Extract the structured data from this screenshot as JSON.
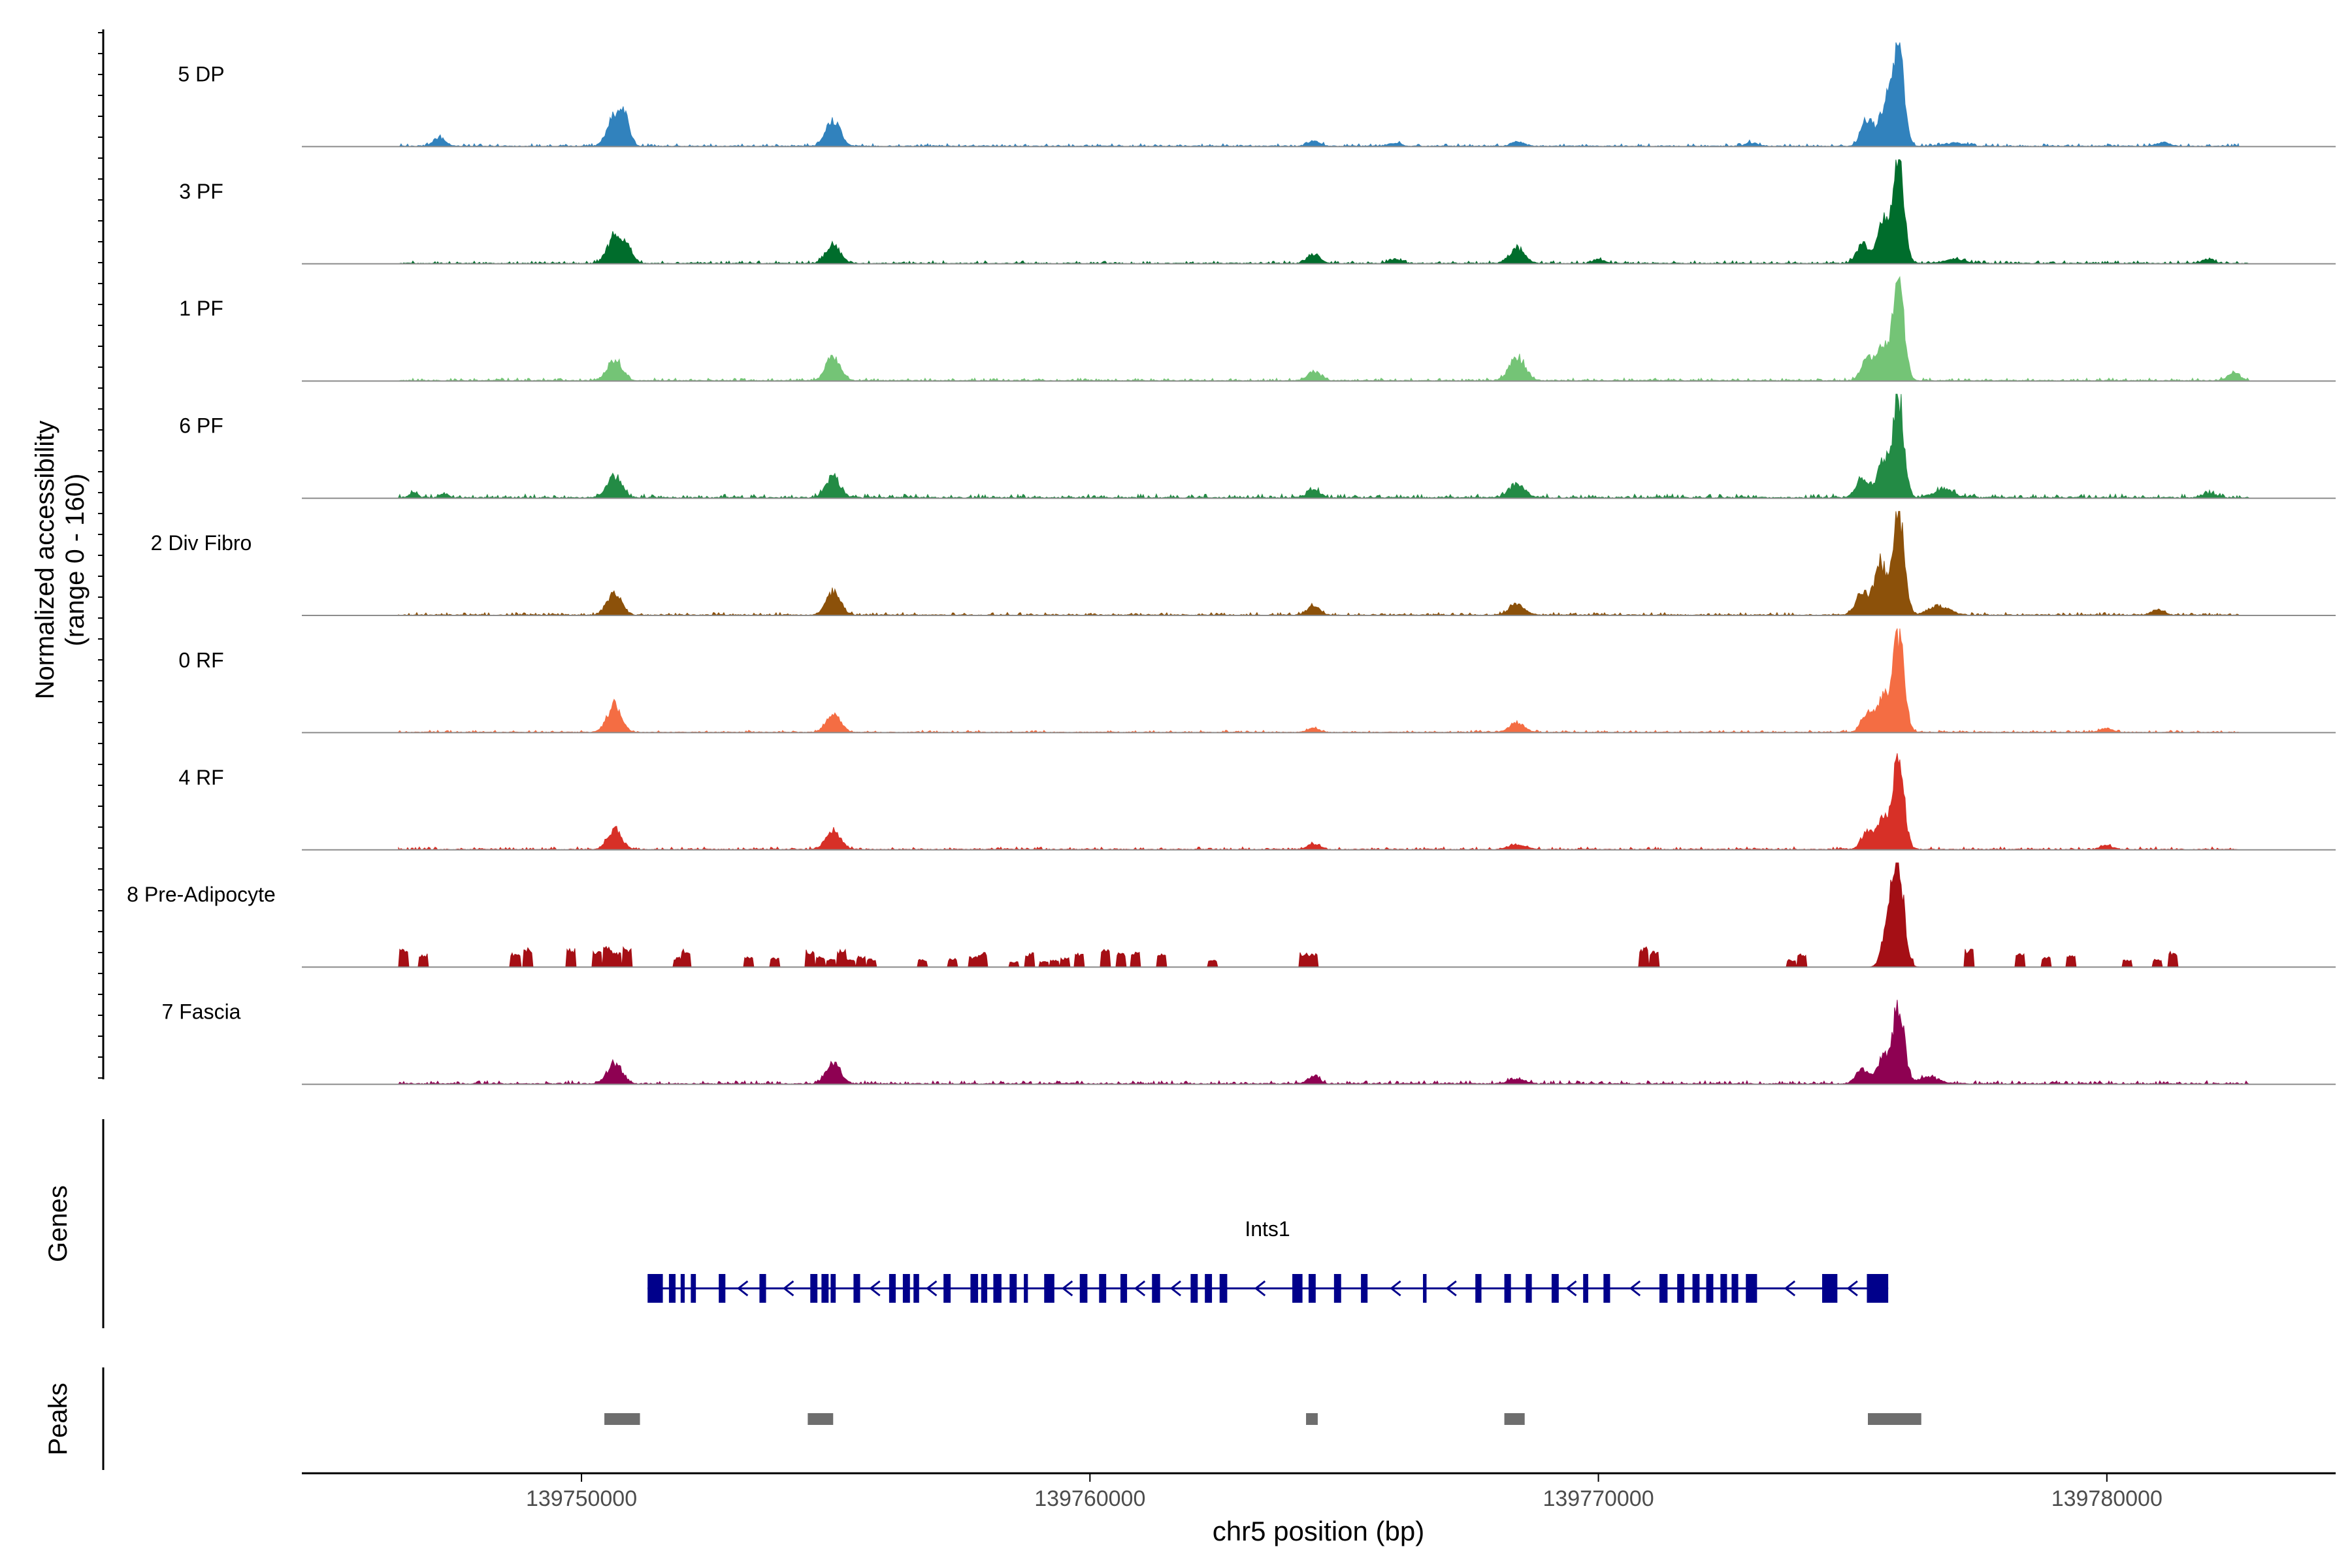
{
  "chart_data": {
    "type": "area",
    "title": "",
    "ylabel_line1": "Normalized accessibility",
    "ylabel_line2": "(range 0 - 160)",
    "ylim": [
      0,
      160
    ],
    "xlabel": "chr5 position (bp)",
    "xlim": [
      139744500,
      139784500
    ],
    "xticks": [
      139750000,
      139760000,
      139770000,
      139780000
    ],
    "xtick_labels": [
      "139750000",
      "139760000",
      "139770000",
      "139780000"
    ],
    "series": [
      {
        "name": "5 DP",
        "color": "#3182BD",
        "peaks": [
          [
            139747200,
            12,
            120
          ],
          [
            139750650,
            45,
            140
          ],
          [
            139750850,
            34,
            100
          ],
          [
            139754950,
            38,
            140
          ],
          [
            139764400,
            8,
            120
          ],
          [
            139766000,
            5,
            120
          ],
          [
            139768400,
            7,
            120
          ],
          [
            139773000,
            5,
            120
          ],
          [
            139775300,
            42,
            120
          ],
          [
            139775650,
            64,
            110
          ],
          [
            139775900,
            148,
            110
          ],
          [
            139777000,
            5,
            200
          ],
          [
            139781100,
            6,
            120
          ]
        ],
        "noise": 2.5,
        "range": [
          139746400,
          139782600
        ]
      },
      {
        "name": "3 PF",
        "color": "#006D2C",
        "peaks": [
          [
            139750650,
            40,
            140
          ],
          [
            139750900,
            22,
            110
          ],
          [
            139754950,
            28,
            140
          ],
          [
            139764400,
            14,
            120
          ],
          [
            139766000,
            6,
            120
          ],
          [
            139768400,
            22,
            150
          ],
          [
            139770000,
            6,
            120
          ],
          [
            139775200,
            30,
            120
          ],
          [
            139775600,
            60,
            110
          ],
          [
            139775900,
            150,
            110
          ],
          [
            139777000,
            6,
            200
          ],
          [
            139782000,
            6,
            120
          ]
        ],
        "noise": 2.5,
        "range": [
          139746400,
          139782800
        ]
      },
      {
        "name": "1 PF",
        "color": "#74C476",
        "peaks": [
          [
            139750650,
            32,
            140
          ],
          [
            139754950,
            36,
            140
          ],
          [
            139764400,
            14,
            120
          ],
          [
            139768400,
            36,
            150
          ],
          [
            139775300,
            34,
            120
          ],
          [
            139775600,
            50,
            110
          ],
          [
            139775900,
            150,
            110
          ],
          [
            139782500,
            12,
            120
          ]
        ],
        "noise": 2.5,
        "range": [
          139746400,
          139782800
        ]
      },
      {
        "name": "6 PF",
        "color": "#238B45",
        "peaks": [
          [
            139746700,
            8,
            80
          ],
          [
            139747300,
            6,
            80
          ],
          [
            139750650,
            32,
            140
          ],
          [
            139754950,
            32,
            140
          ],
          [
            139764400,
            12,
            120
          ],
          [
            139768400,
            22,
            150
          ],
          [
            139775200,
            30,
            130
          ],
          [
            139775600,
            56,
            110
          ],
          [
            139775900,
            150,
            110
          ],
          [
            139776800,
            12,
            200
          ],
          [
            139782000,
            6,
            120
          ]
        ],
        "noise": 3.5,
        "range": [
          139746400,
          139782800
        ]
      },
      {
        "name": "2 Div Fibro",
        "color": "#8C510A",
        "peaks": [
          [
            139750650,
            32,
            140
          ],
          [
            139754950,
            36,
            140
          ],
          [
            139764400,
            14,
            120
          ],
          [
            139768400,
            16,
            150
          ],
          [
            139775200,
            36,
            130
          ],
          [
            139775550,
            80,
            110
          ],
          [
            139775900,
            155,
            110
          ],
          [
            139776700,
            14,
            200
          ],
          [
            139781000,
            8,
            120
          ]
        ],
        "noise": 2.5,
        "range": [
          139746400,
          139782600
        ]
      },
      {
        "name": "0 RF",
        "color": "#F46D43",
        "peaks": [
          [
            139750650,
            40,
            140
          ],
          [
            139754950,
            28,
            140
          ],
          [
            139764400,
            6,
            120
          ],
          [
            139768400,
            14,
            150
          ],
          [
            139775300,
            28,
            120
          ],
          [
            139775600,
            50,
            110
          ],
          [
            139775900,
            148,
            110
          ],
          [
            139780000,
            6,
            120
          ]
        ],
        "noise": 2,
        "range": [
          139746400,
          139782600
        ]
      },
      {
        "name": "4 RF",
        "color": "#D73027",
        "peaks": [
          [
            139750650,
            30,
            140
          ],
          [
            139754950,
            30,
            140
          ],
          [
            139764400,
            8,
            120
          ],
          [
            139768400,
            8,
            150
          ],
          [
            139775300,
            28,
            120
          ],
          [
            139775600,
            46,
            110
          ],
          [
            139775900,
            135,
            110
          ],
          [
            139780000,
            6,
            120
          ]
        ],
        "noise": 2.5,
        "range": [
          139746400,
          139782600
        ]
      },
      {
        "name": "8 Pre-Adipocyte",
        "color": "#A50F15",
        "peaks": [
          [
            139775900,
            150,
            110
          ],
          [
            139775700,
            70,
            110
          ]
        ],
        "noise": 0,
        "spiky": true,
        "range": [
          139746400,
          139782600
        ]
      },
      {
        "name": "7 Fascia",
        "color": "#8E0152",
        "peaks": [
          [
            139750650,
            32,
            140
          ],
          [
            139754950,
            30,
            140
          ],
          [
            139764400,
            10,
            120
          ],
          [
            139768400,
            8,
            150
          ],
          [
            139775200,
            22,
            130
          ],
          [
            139775600,
            40,
            110
          ],
          [
            139775900,
            120,
            110
          ],
          [
            139776500,
            10,
            200
          ]
        ],
        "noise": 3,
        "range": [
          139746400,
          139782800
        ]
      }
    ],
    "genes_label": "Genes",
    "gene": {
      "name": "Ints1",
      "strand": "-",
      "start": 139751300,
      "end": 139775700,
      "color": "#00008B",
      "exons": [
        [
          139751300,
          139751600
        ],
        [
          139751720,
          139751850
        ],
        [
          139751950,
          139752030
        ],
        [
          139752150,
          139752250
        ],
        [
          139752700,
          139752830
        ],
        [
          139753500,
          139753630
        ],
        [
          139754500,
          139754640
        ],
        [
          139754720,
          139754860
        ],
        [
          139754900,
          139755000
        ],
        [
          139755350,
          139755480
        ],
        [
          139756050,
          139756180
        ],
        [
          139756320,
          139756460
        ],
        [
          139756530,
          139756640
        ],
        [
          139757120,
          139757260
        ],
        [
          139757650,
          139757800
        ],
        [
          139757860,
          139757980
        ],
        [
          139758100,
          139758260
        ],
        [
          139758420,
          139758560
        ],
        [
          139758700,
          139758780
        ],
        [
          139759100,
          139759300
        ],
        [
          139759800,
          139759950
        ],
        [
          139760180,
          139760320
        ],
        [
          139760600,
          139760730
        ],
        [
          139761220,
          139761380
        ],
        [
          139761980,
          139762120
        ],
        [
          139762260,
          139762400
        ],
        [
          139762550,
          139762700
        ],
        [
          139763980,
          139764180
        ],
        [
          139764300,
          139764440
        ],
        [
          139764800,
          139764940
        ],
        [
          139765330,
          139765460
        ],
        [
          139766550,
          139766620
        ],
        [
          139767580,
          139767700
        ],
        [
          139768150,
          139768280
        ],
        [
          139768570,
          139768690
        ],
        [
          139769080,
          139769220
        ],
        [
          139769700,
          139769800
        ],
        [
          139770100,
          139770230
        ],
        [
          139771200,
          139771360
        ],
        [
          139771550,
          139771690
        ],
        [
          139771850,
          139771990
        ],
        [
          139772120,
          139772260
        ],
        [
          139772400,
          139772530
        ],
        [
          139772620,
          139772750
        ],
        [
          139772900,
          139773120
        ],
        [
          139774400,
          139774700
        ],
        [
          139775280,
          139775700
        ]
      ]
    },
    "peaks_label": "Peaks",
    "peaks": [
      [
        139750450,
        139751150
      ],
      [
        139754450,
        139754950
      ],
      [
        139764250,
        139764480
      ],
      [
        139768150,
        139768550
      ],
      [
        139775300,
        139776350
      ]
    ]
  }
}
